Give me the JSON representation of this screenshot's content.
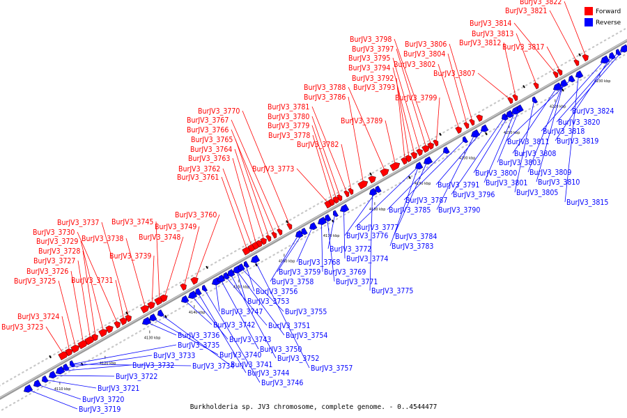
{
  "caption": "Burkholderia sp. JV3 chromosome, complete genome. - 0..4544477",
  "legend": [
    {
      "label": "Forward",
      "color": "#ff0000"
    },
    {
      "label": "Reverse",
      "color": "#0000ff"
    }
  ],
  "colors": {
    "forward": "#ff0000",
    "reverse": "#0000ff",
    "backbone": "#808080"
  },
  "ticks": [
    "4110 kbp",
    "4120 kbp",
    "4130 kbp",
    "4140 kbp",
    "4150 kbp",
    "4160 kbp",
    "4170 kbp",
    "4180 kbp",
    "4190 kbp",
    "4200 kbp",
    "4210 kbp",
    "4220 kbp",
    "4230 kbp"
  ],
  "forward_genes": [
    "BurJV3_3723",
    "BurJV3_3724",
    "BurJV3_3725",
    "BurJV3_3726",
    "BurJV3_3727",
    "BurJV3_3728",
    "BurJV3_3729",
    "BurJV3_3730",
    "BurJV3_3731",
    "BurJV3_3737",
    "BurJV3_3738",
    "BurJV3_3739",
    "BurJV3_3745",
    "BurJV3_3748",
    "BurJV3_3749",
    "BurJV3_3760",
    "BurJV3_3761",
    "BurJV3_3762",
    "BurJV3_3763",
    "BurJV3_3764",
    "BurJV3_3765",
    "BurJV3_3766",
    "BurJV3_3767",
    "BurJV3_3770",
    "BurJV3_3773",
    "BurJV3_3778",
    "BurJV3_3779",
    "BurJV3_3780",
    "BurJV3_3781",
    "BurJV3_3782",
    "BurJV3_3786",
    "BurJV3_3788",
    "BurJV3_3789",
    "BurJV3_3792",
    "BurJV3_3793",
    "BurJV3_3794",
    "BurJV3_3795",
    "BurJV3_3797",
    "BurJV3_3798",
    "BurJV3_3799",
    "BurJV3_3802",
    "BurJV3_3804",
    "BurJV3_3806",
    "BurJV3_3807",
    "BurJV3_3812",
    "BurJV3_3813",
    "BurJV3_3814",
    "BurJV3_3817",
    "BurJV3_3821",
    "BurJV3_3822"
  ],
  "reverse_genes": [
    "BurJV3_3719",
    "BurJV3_3720",
    "BurJV3_3721",
    "BurJV3_3722",
    "BurJV3_3732",
    "BurJV3_3733",
    "BurJV3_3734",
    "BurJV3_3735",
    "BurJV3_3736",
    "BurJV3_3740",
    "BurJV3_3741",
    "BurJV3_3742",
    "BurJV3_3743",
    "BurJV3_3744",
    "BurJV3_3746",
    "BurJV3_3747",
    "BurJV3_3750",
    "BurJV3_3751",
    "BurJV3_3752",
    "BurJV3_3753",
    "BurJV3_3754",
    "BurJV3_3755",
    "BurJV3_3756",
    "BurJV3_3757",
    "BurJV3_3758",
    "BurJV3_3759",
    "BurJV3_3768",
    "BurJV3_3769",
    "BurJV3_3771",
    "BurJV3_3772",
    "BurJV3_3774",
    "BurJV3_3775",
    "BurJV3_3776",
    "BurJV3_3777",
    "BurJV3_3783",
    "BurJV3_3784",
    "BurJV3_3785",
    "BurJV3_3787",
    "BurJV3_3790",
    "BurJV3_3791",
    "BurJV3_3796",
    "BurJV3_3800",
    "BurJV3_3801",
    "BurJV3_3803",
    "BurJV3_3805",
    "BurJV3_3808",
    "BurJV3_3809",
    "BurJV3_3810",
    "BurJV3_3811",
    "BurJV3_3815",
    "BurJV3_3818",
    "BurJV3_3819",
    "BurJV3_3820",
    "BurJV3_3824"
  ]
}
